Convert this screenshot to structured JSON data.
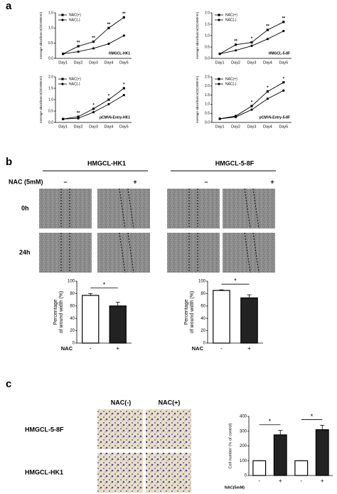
{
  "panel_labels": [
    "a",
    "b",
    "c"
  ],
  "wound": {
    "groups": [
      "HMGCL-HK1",
      "HMGCL-5-8F"
    ],
    "treatment": "NAC (5mM)",
    "conditions": [
      "–",
      "+"
    ],
    "times": [
      "0h",
      "24h"
    ]
  },
  "transwell": {
    "columns": [
      "NAC(-)",
      "NAC(+)"
    ],
    "rows": [
      "HMGCL-5-8F",
      "HMGCL-HK1"
    ]
  },
  "chart_data": [
    {
      "type": "line",
      "ylabel": "Average absorbance(OD490nm)",
      "note": "HMGCL-HK1",
      "categories": [
        "Day1",
        "Day2",
        "Day3",
        "Day4",
        "Day5"
      ],
      "series": [
        {
          "name": "NAC(+)",
          "color": "#000000",
          "marker": "square",
          "values": [
            0.15,
            0.4,
            0.55,
            1.0,
            1.35
          ]
        },
        {
          "name": "NAC(-)",
          "color": "#000000",
          "marker": "circle",
          "values": [
            0.15,
            0.22,
            0.33,
            0.48,
            0.75
          ]
        }
      ],
      "annotations": [
        null,
        "**",
        "**",
        "**",
        "**"
      ],
      "ylim": [
        0,
        1.5
      ],
      "yticks": [
        {
          "value": 0,
          "label": "0.0"
        },
        0.5,
        {
          "value": 1,
          "label": "1.0"
        },
        1.5
      ]
    },
    {
      "type": "line",
      "ylabel": "Average absorbance(OD490nm)",
      "note": "HMGCL-5-8F",
      "categories": [
        "Day1",
        "Day2",
        "Day3",
        "Day4",
        "Day5"
      ],
      "series": [
        {
          "name": "NAC(+)",
          "color": "#000000",
          "marker": "square",
          "values": [
            0.2,
            0.6,
            0.7,
            1.25,
            1.6
          ]
        },
        {
          "name": "NAC(-)",
          "color": "#000000",
          "marker": "circle",
          "values": [
            0.2,
            0.35,
            0.55,
            0.85,
            1.2
          ]
        }
      ],
      "annotations": [
        null,
        "**",
        "*",
        "**",
        "**"
      ],
      "ylim": [
        0,
        2
      ],
      "yticks": [
        {
          "value": 0,
          "label": "0.0"
        },
        0.5,
        {
          "value": 1,
          "label": "1.0"
        },
        1.5,
        {
          "value": 2,
          "label": "2.0"
        }
      ]
    },
    {
      "type": "line",
      "ylabel": "Average absorbance(OD490nm)",
      "note": "pCMV6-Entry-HK1",
      "categories": [
        "Day1",
        "Day2",
        "Day3",
        "Day4",
        "Day5"
      ],
      "series": [
        {
          "name": "NAC(+)",
          "color": "#000000",
          "marker": "square",
          "values": [
            0.15,
            0.25,
            0.6,
            1.0,
            1.5
          ]
        },
        {
          "name": "NAC(-)",
          "color": "#000000",
          "marker": "circle",
          "values": [
            0.15,
            0.18,
            0.45,
            0.8,
            1.2
          ]
        }
      ],
      "annotations": [
        null,
        "**",
        "*",
        "*",
        "*"
      ],
      "ylim": [
        0,
        2
      ],
      "yticks": [
        {
          "value": 0,
          "label": "0.0"
        },
        0.5,
        {
          "value": 1,
          "label": "1.0"
        },
        1.5,
        {
          "value": 2,
          "label": "2.0"
        }
      ]
    },
    {
      "type": "line",
      "ylabel": "Average absorbance(OD490nm)",
      "note": "pCMV6-Entry-5-8F",
      "categories": [
        "Day1",
        "Day2",
        "Day3",
        "Day4",
        "Day5"
      ],
      "series": [
        {
          "name": "NAC(+)",
          "color": "#000000",
          "marker": "square",
          "values": [
            0.2,
            0.35,
            0.9,
            1.7,
            2.2
          ]
        },
        {
          "name": "NAC(-)",
          "color": "#000000",
          "marker": "circle",
          "values": [
            0.2,
            0.3,
            0.7,
            1.3,
            1.75
          ]
        }
      ],
      "annotations": [
        null,
        null,
        "*",
        "*",
        "*"
      ],
      "ylim": [
        0,
        2.5
      ],
      "yticks": [
        {
          "value": 0,
          "label": "0.0"
        },
        0.5,
        {
          "value": 1,
          "label": "1.0"
        },
        1.5,
        {
          "value": 2,
          "label": "2.0"
        },
        2.5
      ]
    },
    {
      "type": "bar",
      "ylabel": [
        "Percentage",
        "of wound width (%)"
      ],
      "xlabel": "NAC",
      "categories": [
        "-",
        "+"
      ],
      "values": [
        77,
        60
      ],
      "errors": [
        3,
        6
      ],
      "colors": [
        "#ffffff",
        "#222222"
      ],
      "significance": [
        "*"
      ],
      "ylim": [
        0,
        100
      ],
      "yticks": [
        0,
        20,
        40,
        60,
        80,
        100
      ]
    },
    {
      "type": "bar",
      "ylabel": [
        "Percentage",
        "of wound width (%)"
      ],
      "xlabel": "NAC",
      "categories": [
        "-",
        "+"
      ],
      "values": [
        85,
        73
      ],
      "errors": [
        1,
        5
      ],
      "colors": [
        "#ffffff",
        "#222222"
      ],
      "significance": [
        "*"
      ],
      "ylim": [
        0,
        100
      ],
      "yticks": [
        0,
        20,
        40,
        60,
        80,
        100
      ]
    },
    {
      "type": "bar",
      "ylabel": [
        "Cell number (% of control)"
      ],
      "xlabel": "NAC(5mM)",
      "categories": [
        "-",
        "+",
        "-",
        "+"
      ],
      "values": [
        100,
        275,
        100,
        310
      ],
      "errors": [
        0,
        30,
        0,
        30
      ],
      "colors": [
        "#ffffff",
        "#222222",
        "#ffffff",
        "#222222"
      ],
      "significance": [
        "*",
        "*"
      ],
      "ylim": [
        0,
        400
      ],
      "yticks": [
        0,
        100,
        200,
        300,
        400
      ]
    }
  ]
}
